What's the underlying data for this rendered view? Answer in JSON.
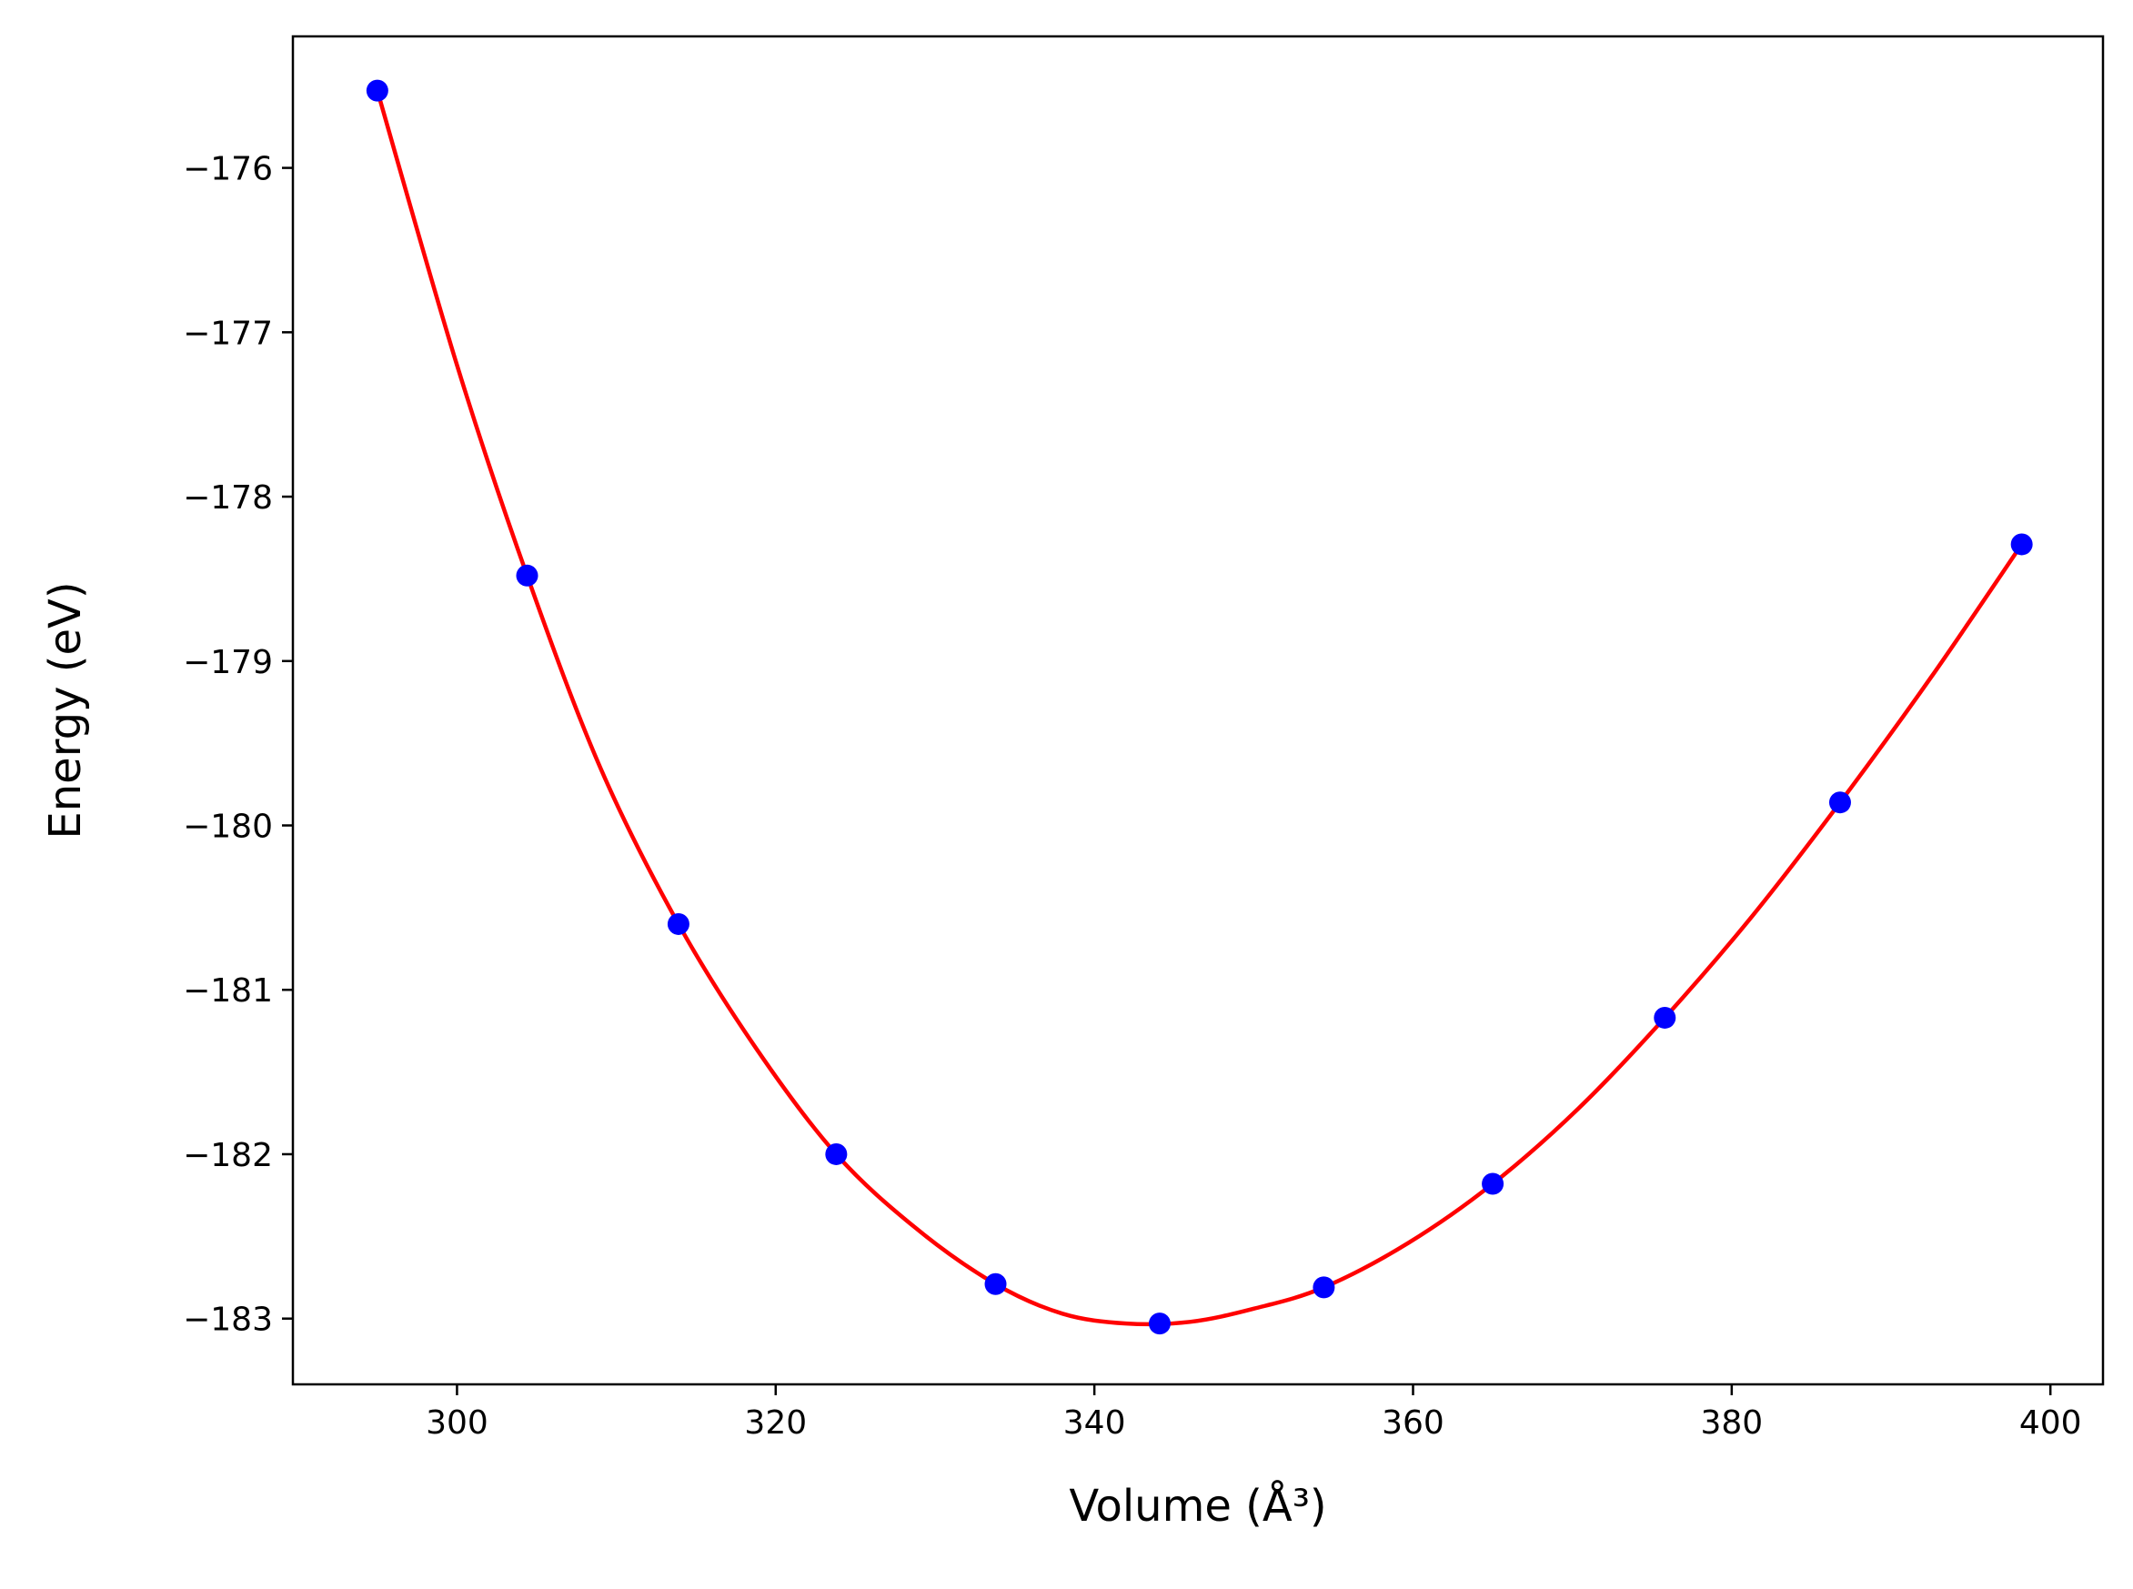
{
  "chart_data": {
    "type": "scatter",
    "xlabel": "Volume (Å³)",
    "ylabel": "Energy (eV)",
    "xlim": [
      289.7,
      403.3
    ],
    "ylim": [
      -183.4,
      -175.2
    ],
    "x_ticks": [
      {
        "value": 300,
        "label": "300"
      },
      {
        "value": 320,
        "label": "320"
      },
      {
        "value": 340,
        "label": "340"
      },
      {
        "value": 360,
        "label": "360"
      },
      {
        "value": 380,
        "label": "380"
      },
      {
        "value": 400,
        "label": "400"
      }
    ],
    "y_ticks": [
      {
        "value": -176,
        "label": "−176"
      },
      {
        "value": -177,
        "label": "−177"
      },
      {
        "value": -178,
        "label": "−178"
      },
      {
        "value": -179,
        "label": "−179"
      },
      {
        "value": -180,
        "label": "−180"
      },
      {
        "value": -181,
        "label": "−181"
      },
      {
        "value": -182,
        "label": "−182"
      },
      {
        "value": -183,
        "label": "−183"
      }
    ],
    "grid": false,
    "legend": "none",
    "series": [
      {
        "kind": "markers",
        "color": "#0000ff",
        "points": [
          {
            "x": 295.0,
            "y": -175.53
          },
          {
            "x": 304.4,
            "y": -178.48
          },
          {
            "x": 313.9,
            "y": -180.6
          },
          {
            "x": 323.8,
            "y": -182.0
          },
          {
            "x": 333.8,
            "y": -182.79
          },
          {
            "x": 344.1,
            "y": -183.03
          },
          {
            "x": 354.4,
            "y": -182.81
          },
          {
            "x": 365.0,
            "y": -182.18
          },
          {
            "x": 375.8,
            "y": -181.17
          },
          {
            "x": 386.8,
            "y": -179.86
          },
          {
            "x": 398.2,
            "y": -178.29
          }
        ]
      },
      {
        "kind": "fit-curve",
        "color": "#ff0000",
        "points": [
          {
            "x": 295.0,
            "y": -175.53
          },
          {
            "x": 300.0,
            "y": -177.2
          },
          {
            "x": 304.4,
            "y": -178.48
          },
          {
            "x": 309.0,
            "y": -179.65
          },
          {
            "x": 313.9,
            "y": -180.6
          },
          {
            "x": 318.8,
            "y": -181.36
          },
          {
            "x": 323.8,
            "y": -182.0
          },
          {
            "x": 328.8,
            "y": -182.45
          },
          {
            "x": 333.8,
            "y": -182.79
          },
          {
            "x": 338.0,
            "y": -182.97
          },
          {
            "x": 342.0,
            "y": -183.03
          },
          {
            "x": 346.0,
            "y": -183.02
          },
          {
            "x": 350.0,
            "y": -182.94
          },
          {
            "x": 354.4,
            "y": -182.81
          },
          {
            "x": 359.7,
            "y": -182.54
          },
          {
            "x": 365.0,
            "y": -182.18
          },
          {
            "x": 370.4,
            "y": -181.72
          },
          {
            "x": 375.8,
            "y": -181.17
          },
          {
            "x": 381.3,
            "y": -180.55
          },
          {
            "x": 386.8,
            "y": -179.86
          },
          {
            "x": 392.5,
            "y": -179.1
          },
          {
            "x": 398.2,
            "y": -178.29
          }
        ]
      }
    ]
  }
}
